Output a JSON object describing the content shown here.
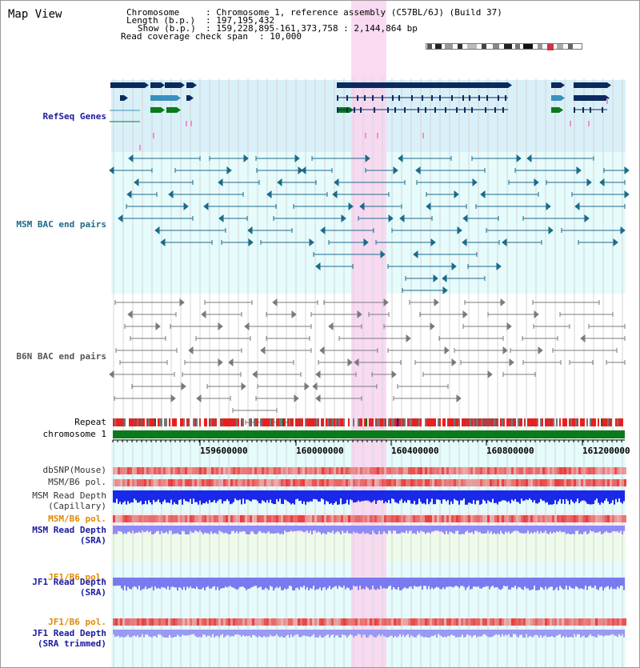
{
  "title": "Map View",
  "info": {
    "chromosome_key": "Chromosome",
    "chromosome_val": ": Chromosome 1, reference assembly (C57BL/6J) (Build 37)",
    "length_key": "Length (b.p.)",
    "length_val": ": 197,195,432",
    "show_key": "Show (b.p.)",
    "show_val": ": 159,228,895-161,373,758 : 2,144,864 bp",
    "span_key": "Read coverage check span",
    "span_val": ": 10,000"
  },
  "tracks": {
    "refseq": "RefSeq Genes",
    "msm_bac": "MSM BAC end pairs",
    "b6n_bac": "B6N BAC end pairs",
    "repeat": "Repeat",
    "chromosome": "chromosome 1",
    "dbsnp": "dbSNP(Mouse)",
    "msm_b6_pol": "MSM/B6 pol.",
    "msm_rd_cap_1": "MSM Read Depth",
    "msm_rd_cap_2": "(Capillary)",
    "msm_b6_pol_sra": "MSM/B6 pol.",
    "msm_rd_sra_1": "MSM Read Depth",
    "msm_rd_sra_2": "(SRA)",
    "jf1_b6_pol": "JF1/B6 pol.",
    "jf1_rd_1": "JF1 Read Depth",
    "jf1_rd_2": "(SRA)",
    "jf1_b6_pol_2": "JF1/B6 pol.",
    "jf1_rdt_1": "JF1 Read Depth",
    "jf1_rdt_2": "(SRA trimmed)"
  },
  "axis_ticks": [
    "159600000",
    "160000000",
    "160400000",
    "160800000",
    "161200000"
  ],
  "colors": {
    "highlight": "#f8d6f0",
    "refseq_bg": "#d8f0f8",
    "msm_bg": "#e6fbfb",
    "gene_navy": "#0c2a5e",
    "gene_teal": "#3a8fc0",
    "gene_green": "#0a7a1a",
    "msm_line": "#1c6a8a",
    "b6n_line": "#7a7a7a",
    "depth_blue": "#2030e0",
    "depth_light": "#8c8cf4",
    "pol_red": "#e83030",
    "label_blue": "#1a1aa0",
    "label_orange": "#e08a00",
    "label_teal": "#1a6a8a",
    "label_grey": "#555555"
  }
}
